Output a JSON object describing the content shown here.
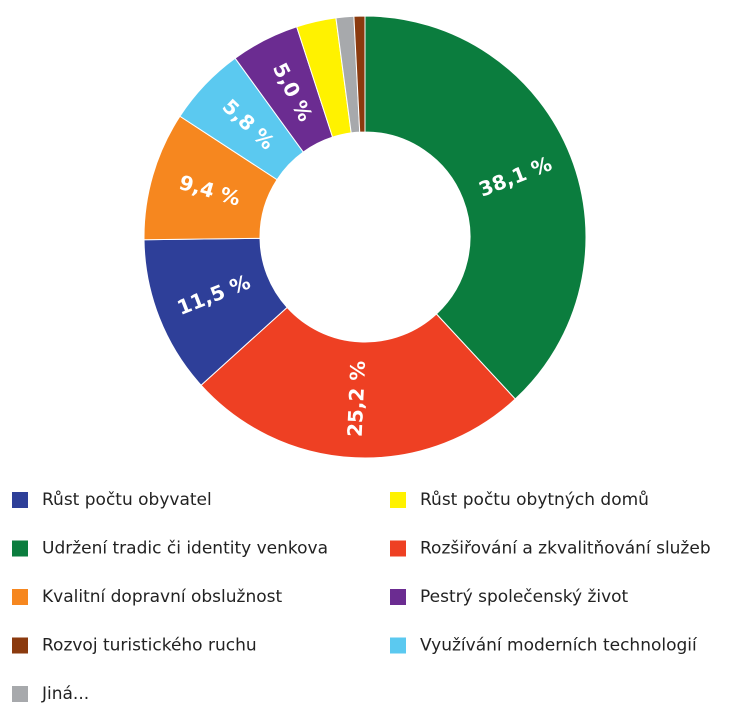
{
  "chart_data": {
    "type": "donut",
    "categories": [
      "Udržení tradic či identity venkova",
      "Rozšiřování a zkvalitňování služeb",
      "Růst počtu obyvatel",
      "Kvalitní dopravní obslužnost",
      "Využívání moderních technologií",
      "Pestrý společenský život",
      "Růst počtu obytných domů",
      "Jiná...",
      "Rozvoj turistického ruchu"
    ],
    "values": [
      38.1,
      25.2,
      11.5,
      9.4,
      5.8,
      5.0,
      2.9,
      1.3,
      0.8
    ],
    "value_labels": [
      "38,1 %",
      "25,2 %",
      "11,5 %",
      "9,4 %",
      "5,8 %",
      "5,0 %",
      null,
      null,
      null
    ],
    "colors": [
      "#0b7d3e",
      "#ee4023",
      "#2e3f99",
      "#f6871f",
      "#5bc9f0",
      "#6b2c91",
      "#fff200",
      "#a7a9ac",
      "#8b3a0e"
    ]
  }
}
